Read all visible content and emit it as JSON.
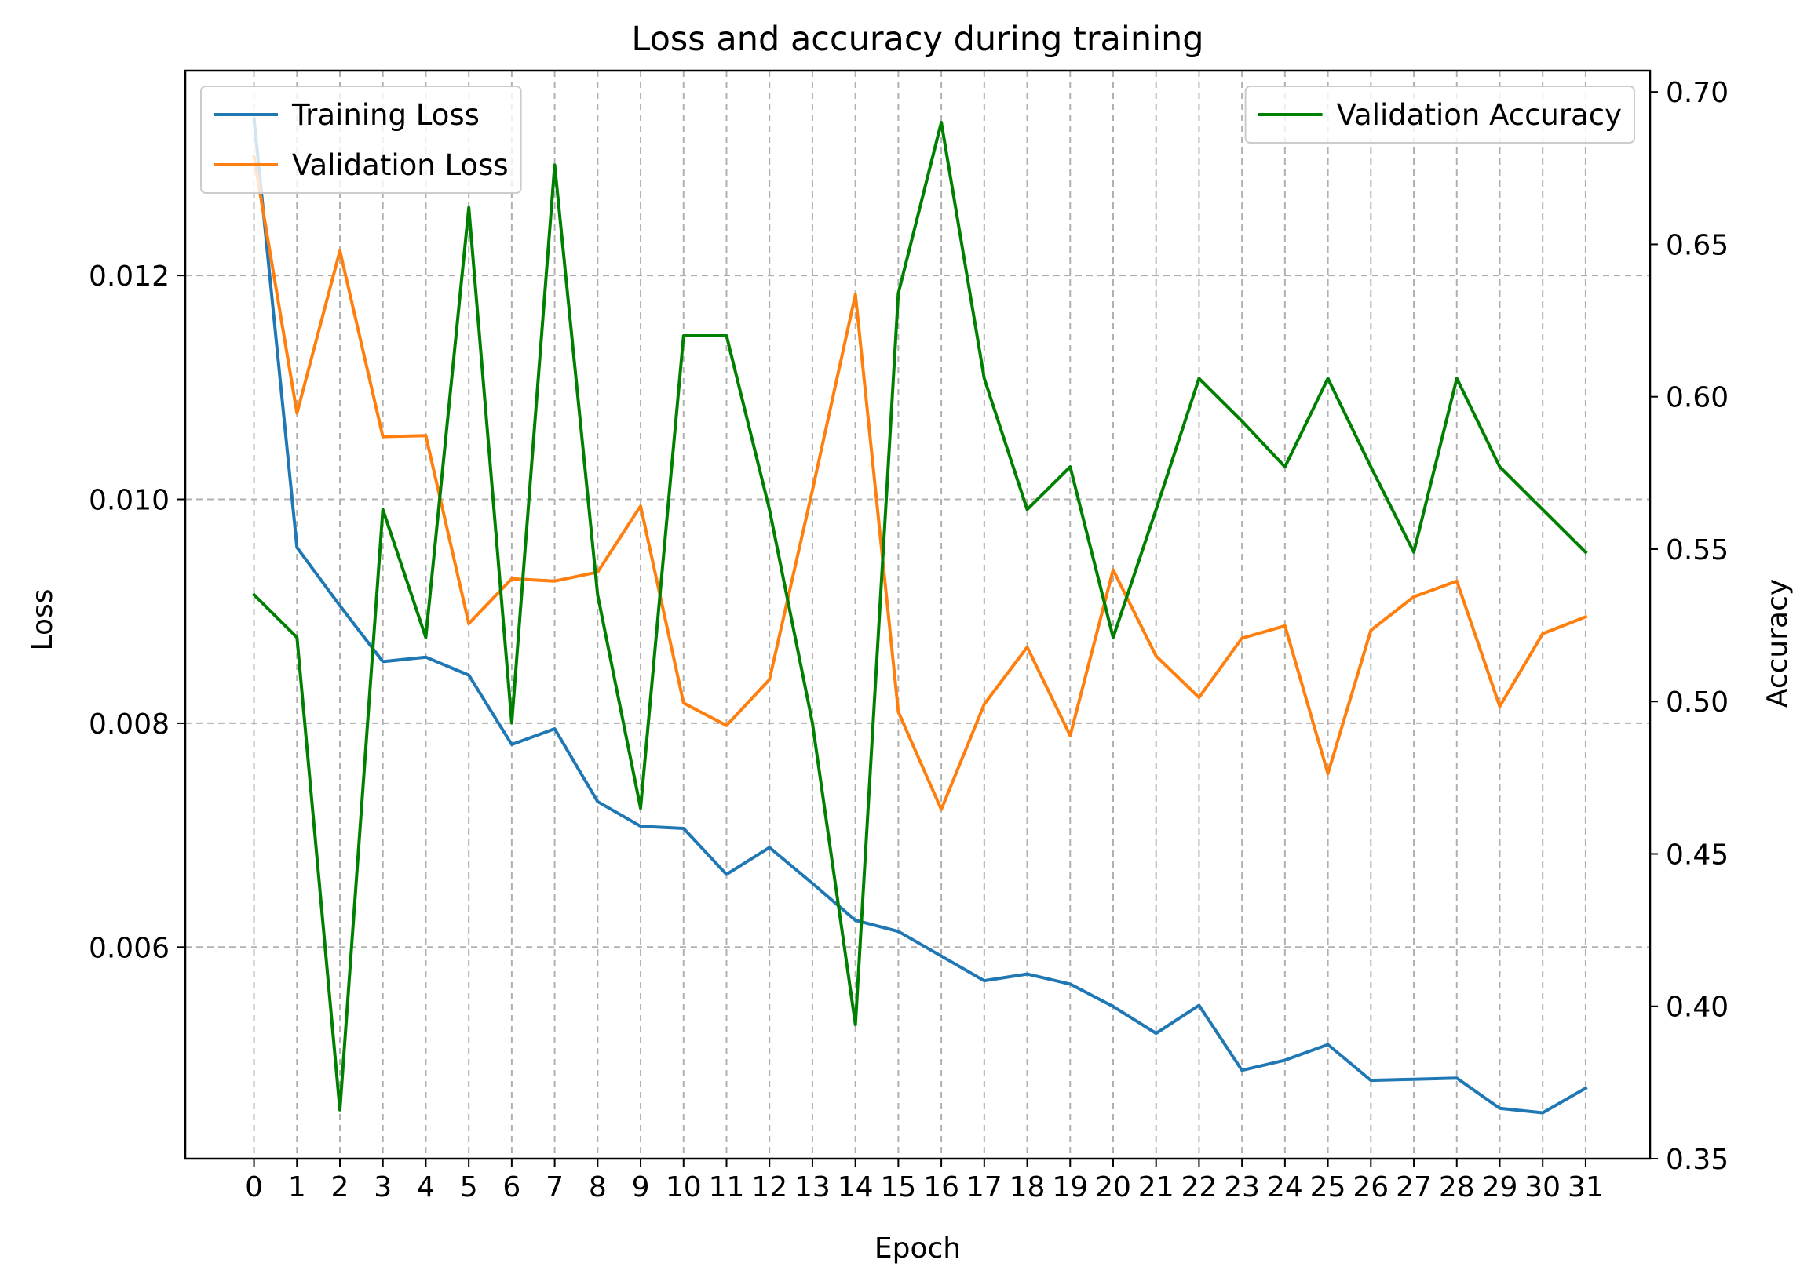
{
  "chart_data": {
    "type": "line",
    "title": "Loss and accuracy during training",
    "xlabel": "Epoch",
    "ylabel": "Loss",
    "ylabel_right": "Accuracy",
    "x": [
      0,
      1,
      2,
      3,
      4,
      5,
      6,
      7,
      8,
      9,
      10,
      11,
      12,
      13,
      14,
      15,
      16,
      17,
      18,
      19,
      20,
      21,
      22,
      23,
      24,
      25,
      26,
      27,
      28,
      29,
      30,
      31
    ],
    "x_ticks": [
      "0",
      "1",
      "2",
      "3",
      "4",
      "5",
      "6",
      "7",
      "8",
      "9",
      "10",
      "11",
      "12",
      "13",
      "14",
      "15",
      "16",
      "17",
      "18",
      "19",
      "20",
      "21",
      "22",
      "23",
      "24",
      "25",
      "26",
      "27",
      "28",
      "29",
      "30",
      "31"
    ],
    "xlim": [
      -1.6,
      32.5
    ],
    "ylim_left": [
      0.00411,
      0.01383
    ],
    "ylim_right": [
      0.35,
      0.707
    ],
    "y_ticks_left": [
      {
        "value": 0.006,
        "label": "0.006"
      },
      {
        "value": 0.008,
        "label": "0.008"
      },
      {
        "value": 0.01,
        "label": "0.010"
      },
      {
        "value": 0.012,
        "label": "0.012"
      }
    ],
    "y_ticks_right": [
      {
        "value": 0.35,
        "label": "0.35"
      },
      {
        "value": 0.4,
        "label": "0.40"
      },
      {
        "value": 0.45,
        "label": "0.45"
      },
      {
        "value": 0.5,
        "label": "0.50"
      },
      {
        "value": 0.55,
        "label": "0.55"
      },
      {
        "value": 0.6,
        "label": "0.60"
      },
      {
        "value": 0.65,
        "label": "0.65"
      },
      {
        "value": 0.7,
        "label": "0.70"
      }
    ],
    "grid": true,
    "series": [
      {
        "name": "Training Loss",
        "axis": "left",
        "color": "#1f77b4",
        "values": [
          0.0134,
          0.00957,
          0.00905,
          0.00855,
          0.00859,
          0.00843,
          0.00781,
          0.00795,
          0.0073,
          0.00708,
          0.00706,
          0.00665,
          0.00689,
          0.00657,
          0.00624,
          0.00614,
          0.00592,
          0.0057,
          0.00576,
          0.00567,
          0.00547,
          0.00523,
          0.00548,
          0.0049,
          0.00499,
          0.00513,
          0.00481,
          0.00482,
          0.00483,
          0.00456,
          0.00452,
          0.00474
        ]
      },
      {
        "name": "Validation Loss",
        "axis": "left",
        "color": "#ff7f0e",
        "values": [
          0.01306,
          0.01077,
          0.01222,
          0.01056,
          0.01057,
          0.00889,
          0.00929,
          0.00927,
          0.00935,
          0.00994,
          0.00818,
          0.00798,
          0.00839,
          0.01008,
          0.01183,
          0.0081,
          0.00723,
          0.00817,
          0.00868,
          0.00789,
          0.00937,
          0.0086,
          0.00823,
          0.00876,
          0.00887,
          0.00755,
          0.00883,
          0.00913,
          0.00927,
          0.00815,
          0.0088,
          0.00895
        ]
      },
      {
        "name": "Validation Accuracy",
        "axis": "right",
        "color": "#008000",
        "values": [
          0.535,
          0.521,
          0.366,
          0.563,
          0.521,
          0.662,
          0.493,
          0.676,
          0.535,
          0.465,
          0.62,
          0.62,
          0.563,
          0.493,
          0.394,
          0.634,
          0.69,
          0.606,
          0.563,
          0.577,
          0.521,
          0.563,
          0.606,
          0.592,
          0.577,
          0.606,
          0.577,
          0.549,
          0.606,
          0.577,
          0.563,
          0.549
        ]
      }
    ],
    "legends": [
      {
        "placement": "upper left",
        "series": [
          "Training Loss",
          "Validation Loss"
        ]
      },
      {
        "placement": "upper right",
        "series": [
          "Validation Accuracy"
        ]
      }
    ]
  }
}
